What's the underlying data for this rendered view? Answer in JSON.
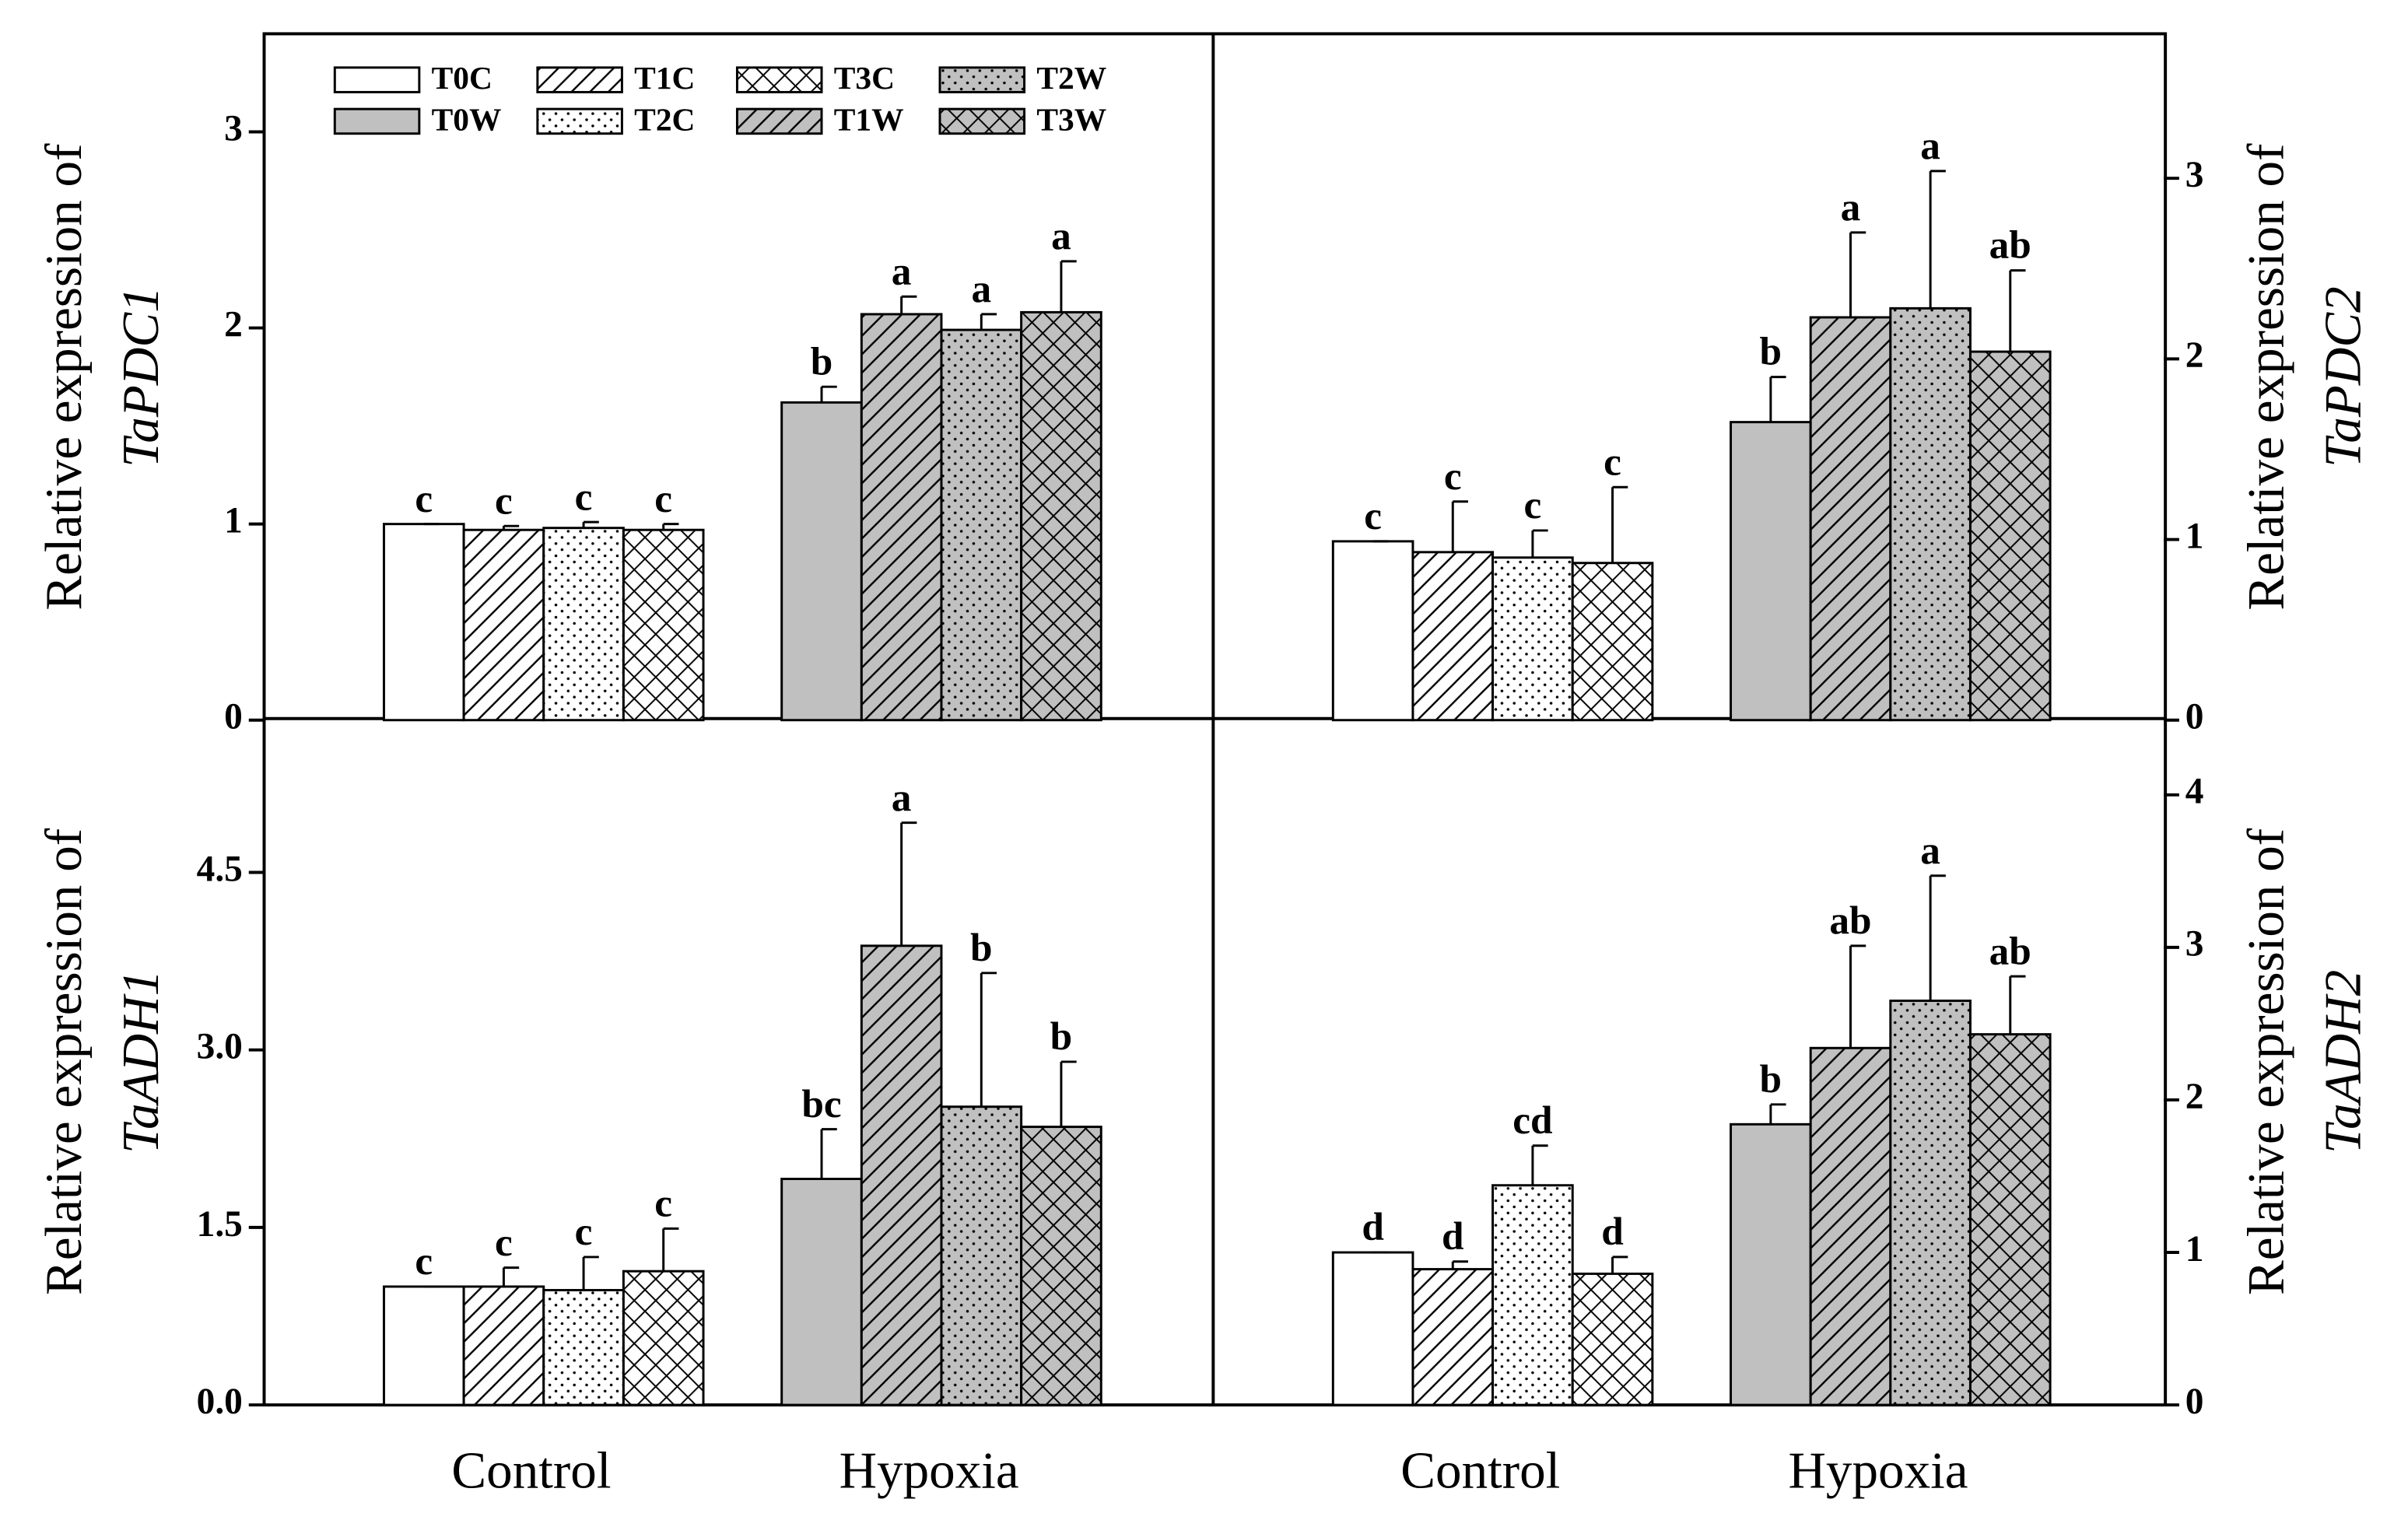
{
  "chart_data": [
    {
      "type": "bar",
      "ylabel": "Relative expression of",
      "ylabel_gene": "TaPDC1",
      "yaxis_side": "left",
      "legend": "upper left",
      "ylim": [
        0,
        3.5
      ],
      "yticks": [
        0,
        1,
        2,
        3
      ],
      "series": [
        {
          "name": "T0C",
          "color": "#ffffff",
          "pattern": "none",
          "values": [
            1.0,
            null
          ],
          "errors": [
            0,
            null
          ],
          "letters": [
            "c",
            null
          ]
        },
        {
          "name": "T1C",
          "color": "#ffffff",
          "pattern": "hatch",
          "values": [
            0.97,
            null
          ],
          "errors": [
            0.02,
            null
          ],
          "letters": [
            "c",
            null
          ]
        },
        {
          "name": "T2C",
          "color": "#ffffff",
          "pattern": "dots",
          "values": [
            0.98,
            null
          ],
          "errors": [
            0.03,
            null
          ],
          "letters": [
            "c",
            null
          ]
        },
        {
          "name": "T3C",
          "color": "#ffffff",
          "pattern": "cross",
          "values": [
            0.97,
            null
          ],
          "errors": [
            0.03,
            null
          ],
          "letters": [
            "c",
            null
          ]
        },
        {
          "name": "T0W",
          "color": "#c0c0c0",
          "pattern": "none",
          "values": [
            null,
            1.62
          ],
          "errors": [
            null,
            0.08
          ],
          "letters": [
            null,
            "b"
          ]
        },
        {
          "name": "T1W",
          "color": "#c0c0c0",
          "pattern": "hatch",
          "values": [
            null,
            2.07
          ],
          "errors": [
            null,
            0.09
          ],
          "letters": [
            null,
            "a"
          ]
        },
        {
          "name": "T2W",
          "color": "#c0c0c0",
          "pattern": "dots",
          "values": [
            null,
            1.99
          ],
          "errors": [
            null,
            0.08
          ],
          "letters": [
            null,
            "a"
          ]
        },
        {
          "name": "T3W",
          "color": "#c0c0c0",
          "pattern": "cross",
          "values": [
            null,
            2.08
          ],
          "errors": [
            null,
            0.26
          ],
          "letters": [
            null,
            "a"
          ]
        }
      ]
    },
    {
      "type": "bar",
      "ylabel": "Relative expression of",
      "ylabel_gene": "TaPDC2",
      "yaxis_side": "right",
      "ylim": [
        0,
        3.8
      ],
      "yticks": [
        0,
        1,
        2,
        3
      ],
      "series": [
        {
          "color": "#ffffff",
          "pattern": "none",
          "values": [
            0.99,
            null
          ],
          "errors": [
            0,
            null
          ],
          "letters": [
            "c",
            null
          ]
        },
        {
          "color": "#ffffff",
          "pattern": "hatch",
          "values": [
            0.93,
            null
          ],
          "errors": [
            0.28,
            null
          ],
          "letters": [
            "c",
            null
          ]
        },
        {
          "color": "#ffffff",
          "pattern": "dots",
          "values": [
            0.9,
            null
          ],
          "errors": [
            0.15,
            null
          ],
          "letters": [
            "c",
            null
          ]
        },
        {
          "color": "#ffffff",
          "pattern": "cross",
          "values": [
            0.87,
            null
          ],
          "errors": [
            0.42,
            null
          ],
          "letters": [
            "c",
            null
          ]
        },
        {
          "color": "#c0c0c0",
          "pattern": "none",
          "values": [
            null,
            1.65
          ],
          "errors": [
            null,
            0.25
          ],
          "letters": [
            null,
            "b"
          ]
        },
        {
          "color": "#c0c0c0",
          "pattern": "hatch",
          "values": [
            null,
            2.23
          ],
          "errors": [
            null,
            0.47
          ],
          "letters": [
            null,
            "a"
          ]
        },
        {
          "color": "#c0c0c0",
          "pattern": "dots",
          "values": [
            null,
            2.28
          ],
          "errors": [
            null,
            0.76
          ],
          "letters": [
            null,
            "a"
          ]
        },
        {
          "color": "#c0c0c0",
          "pattern": "cross",
          "values": [
            null,
            2.04
          ],
          "errors": [
            null,
            0.45
          ],
          "letters": [
            null,
            "ab"
          ]
        }
      ]
    },
    {
      "type": "bar",
      "ylabel": "Relative expression of",
      "ylabel_gene": "TaADH1",
      "yaxis_side": "left",
      "ylim": [
        0,
        5.8
      ],
      "yticks": [
        {
          "value": 0,
          "label": "0.0"
        },
        1.5,
        {
          "value": 3,
          "label": "3.0"
        },
        4.5
      ],
      "categories": [
        "Control",
        "Hypoxia"
      ],
      "series": [
        {
          "color": "#ffffff",
          "pattern": "none",
          "values": [
            1.0,
            null
          ],
          "errors": [
            0,
            null
          ],
          "letters": [
            "c",
            null
          ]
        },
        {
          "color": "#ffffff",
          "pattern": "hatch",
          "values": [
            1.0,
            null
          ],
          "errors": [
            0.16,
            null
          ],
          "letters": [
            "c",
            null
          ]
        },
        {
          "color": "#ffffff",
          "pattern": "dots",
          "values": [
            0.97,
            null
          ],
          "errors": [
            0.28,
            null
          ],
          "letters": [
            "c",
            null
          ]
        },
        {
          "color": "#ffffff",
          "pattern": "cross",
          "values": [
            1.13,
            null
          ],
          "errors": [
            0.36,
            null
          ],
          "letters": [
            "c",
            null
          ]
        },
        {
          "color": "#c0c0c0",
          "pattern": "none",
          "values": [
            null,
            1.91
          ],
          "errors": [
            null,
            0.42
          ],
          "letters": [
            null,
            "bc"
          ]
        },
        {
          "color": "#c0c0c0",
          "pattern": "hatch",
          "values": [
            null,
            3.88
          ],
          "errors": [
            null,
            1.04
          ],
          "letters": [
            null,
            "a"
          ]
        },
        {
          "color": "#c0c0c0",
          "pattern": "dots",
          "values": [
            null,
            2.52
          ],
          "errors": [
            null,
            1.13
          ],
          "letters": [
            null,
            "b"
          ]
        },
        {
          "color": "#c0c0c0",
          "pattern": "cross",
          "values": [
            null,
            2.35
          ],
          "errors": [
            null,
            0.55
          ],
          "letters": [
            null,
            "b"
          ]
        }
      ]
    },
    {
      "type": "bar",
      "ylabel": "Relative expression of",
      "ylabel_gene": "TaADH2",
      "yaxis_side": "right",
      "ylim": [
        0,
        4.5
      ],
      "yticks": [
        0,
        1,
        2,
        3,
        4
      ],
      "categories": [
        "Control",
        "Hypoxia"
      ],
      "series": [
        {
          "color": "#ffffff",
          "pattern": "none",
          "values": [
            1.0,
            null
          ],
          "errors": [
            0,
            null
          ],
          "letters": [
            "d",
            null
          ]
        },
        {
          "color": "#ffffff",
          "pattern": "hatch",
          "values": [
            0.89,
            null
          ],
          "errors": [
            0.05,
            null
          ],
          "letters": [
            "d",
            null
          ]
        },
        {
          "color": "#ffffff",
          "pattern": "dots",
          "values": [
            1.44,
            null
          ],
          "errors": [
            0.26,
            null
          ],
          "letters": [
            "cd",
            null
          ]
        },
        {
          "color": "#ffffff",
          "pattern": "cross",
          "values": [
            0.86,
            null
          ],
          "errors": [
            0.11,
            null
          ],
          "letters": [
            "d",
            null
          ]
        },
        {
          "color": "#c0c0c0",
          "pattern": "none",
          "values": [
            null,
            1.84
          ],
          "errors": [
            null,
            0.13
          ],
          "letters": [
            null,
            "b"
          ]
        },
        {
          "color": "#c0c0c0",
          "pattern": "hatch",
          "values": [
            null,
            2.34
          ],
          "errors": [
            null,
            0.67
          ],
          "letters": [
            null,
            "ab"
          ]
        },
        {
          "color": "#c0c0c0",
          "pattern": "dots",
          "values": [
            null,
            2.65
          ],
          "errors": [
            null,
            0.82
          ],
          "letters": [
            null,
            "a"
          ]
        },
        {
          "color": "#c0c0c0",
          "pattern": "cross",
          "values": [
            null,
            2.43
          ],
          "errors": [
            null,
            0.38
          ],
          "letters": [
            null,
            "ab"
          ]
        }
      ]
    }
  ]
}
